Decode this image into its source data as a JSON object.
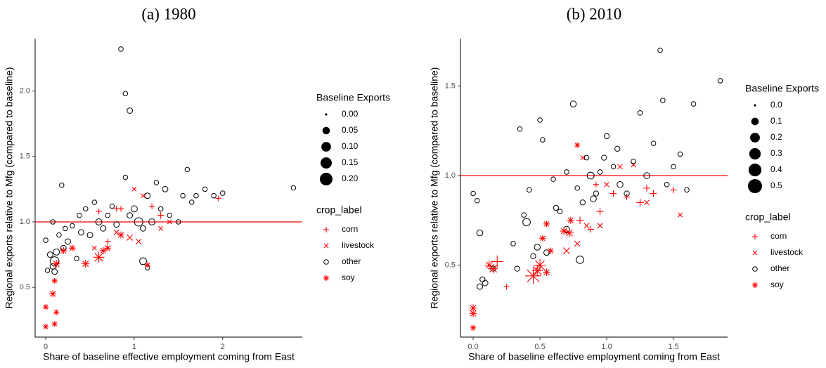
{
  "chart_data": [
    {
      "type": "scatter",
      "title": "(a) 1980",
      "x_label": "Share of baseline effective employment coming from East",
      "y_label": "Regional exports relative to Mfg (compared to baseline)",
      "xlim": [
        -0.12,
        2.9
      ],
      "ylim": [
        0.12,
        2.4
      ],
      "xticks": [
        0,
        1,
        2
      ],
      "yticks": [
        {
          "value": 0.5,
          "label": "0.5"
        },
        {
          "value": 1,
          "label": "1.0"
        },
        {
          "value": 1.5,
          "label": "1.5"
        },
        {
          "value": 2,
          "label": "2.0"
        }
      ],
      "hline": 1,
      "hline_color": "#ff0000",
      "size_legend": {
        "title": "Baseline Exports",
        "values": [
          {
            "value": 0,
            "label": "0.00"
          },
          {
            "value": 0.05,
            "label": "0.05"
          },
          {
            "value": 0.1,
            "label": "0.10"
          },
          {
            "value": 0.15,
            "label": "0.15"
          },
          {
            "value": 0.2,
            "label": "0.20"
          }
        ]
      },
      "color_legend_title": "crop_label",
      "series": [
        {
          "name": "corn",
          "color": "#ff0000",
          "marker": "plus",
          "x": [
            0.6,
            0.8,
            0.85,
            1.2,
            1.3,
            1.95,
            0.7
          ],
          "values": [
            1.08,
            1.1,
            1.1,
            1.12,
            1.05,
            1.18,
            0.85
          ],
          "sizes": [
            0.01,
            0.01,
            0.01,
            0.01,
            0.02,
            0.01,
            0.01
          ]
        },
        {
          "name": "livestock",
          "color": "#ff0000",
          "marker": "cross",
          "x": [
            1.0,
            0.95,
            1.05,
            1.3,
            1.4,
            0.55,
            0.8,
            1.1
          ],
          "values": [
            1.25,
            0.88,
            0.85,
            0.95,
            1.0,
            0.8,
            0.92,
            1.2
          ],
          "sizes": [
            0.01,
            0.03,
            0.02,
            0.01,
            0.01,
            0.01,
            0.02,
            0.01
          ]
        },
        {
          "name": "other",
          "color": "#000000",
          "marker": "circle",
          "x": [
            0,
            0.02,
            0.05,
            0.08,
            0.1,
            0.1,
            0.12,
            0.15,
            0.18,
            0.2,
            0.22,
            0.25,
            0.3,
            0.35,
            0.38,
            0.4,
            0.45,
            0.5,
            0.55,
            0.6,
            0.65,
            0.7,
            0.75,
            0.8,
            0.85,
            0.9,
            0.95,
            0.9,
            0.95,
            1.0,
            1.05,
            1.1,
            1.1,
            1.15,
            1.15,
            1.2,
            1.25,
            1.3,
            1.35,
            1.4,
            1.5,
            1.55,
            1.6,
            1.65,
            1.7,
            1.8,
            1.9,
            2.0,
            2.8,
            0.08
          ],
          "values": [
            0.86,
            0.63,
            0.75,
            1.0,
            0.7,
            0.62,
            0.77,
            0.9,
            1.28,
            0.8,
            0.95,
            0.85,
            0.97,
            0.72,
            1.05,
            0.92,
            1.1,
            0.9,
            1.15,
            1.0,
            0.95,
            1.05,
            1.12,
            0.98,
            2.32,
            1.98,
            1.85,
            1.34,
            1.05,
            1.1,
            1.0,
            0.95,
            0.7,
            0.65,
            1.2,
            1.0,
            1.3,
            1.1,
            1.25,
            1.05,
            1.0,
            1.2,
            1.4,
            1.15,
            1.2,
            1.25,
            1.2,
            1.22,
            1.26,
            0.66
          ],
          "sizes": [
            0.01,
            0.01,
            0.02,
            0.01,
            0.08,
            0.02,
            0.03,
            0.01,
            0.01,
            0.02,
            0.01,
            0.02,
            0.01,
            0.01,
            0.01,
            0.02,
            0.01,
            0.02,
            0.01,
            0.03,
            0.02,
            0.01,
            0.01,
            0.02,
            0.01,
            0.01,
            0.02,
            0.01,
            0.02,
            0.03,
            0.07,
            0.02,
            0.04,
            0.01,
            0.02,
            0.03,
            0.01,
            0.01,
            0.02,
            0.01,
            0.01,
            0.01,
            0.01,
            0.01,
            0.01,
            0.01,
            0.01,
            0.01,
            0.01,
            0.02
          ]
        },
        {
          "name": "soy",
          "color": "#ff0000",
          "marker": "asterisk",
          "x": [
            0.0,
            0.0,
            0.1,
            0.12,
            0.08,
            0.1,
            0.12,
            0.2,
            0.3,
            0.45,
            0.6,
            0.65,
            0.7,
            0.85,
            1.15
          ],
          "values": [
            0.35,
            0.2,
            0.22,
            0.31,
            0.45,
            0.55,
            0.68,
            0.78,
            0.8,
            0.68,
            0.73,
            0.78,
            0.8,
            0.9,
            0.67
          ],
          "sizes": [
            0.01,
            0.01,
            0.01,
            0.01,
            0.02,
            0.01,
            0.03,
            0.02,
            0.02,
            0.03,
            0.08,
            0.02,
            0.02,
            0.02,
            0.01
          ]
        }
      ]
    },
    {
      "type": "scatter",
      "title": "(b) 2010",
      "x_label": "Share of baseline effective employment coming from East",
      "y_label": "Regional exports relative to Mfg (compared to baseline)",
      "xlim": [
        -0.095,
        1.905
      ],
      "ylim": [
        0.098,
        1.765
      ],
      "xticks": [
        {
          "value": 0,
          "label": "0.0"
        },
        {
          "value": 0.5,
          "label": "0.5"
        },
        {
          "value": 1,
          "label": "1.0"
        },
        {
          "value": 1.5,
          "label": "1.5"
        }
      ],
      "yticks": [
        {
          "value": 0.5,
          "label": "0.5"
        },
        {
          "value": 1,
          "label": "1.0"
        },
        {
          "value": 1.5,
          "label": "1.5"
        }
      ],
      "hline": 1,
      "hline_color": "#ff0000",
      "size_legend": {
        "title": "Baseline Exports",
        "values": [
          {
            "value": 0,
            "label": "0.0"
          },
          {
            "value": 0.1,
            "label": "0.1"
          },
          {
            "value": 0.2,
            "label": "0.2"
          },
          {
            "value": 0.3,
            "label": "0.3"
          },
          {
            "value": 0.4,
            "label": "0.4"
          },
          {
            "value": 0.5,
            "label": "0.5"
          }
        ]
      },
      "color_legend_title": "crop_label",
      "series": [
        {
          "name": "corn",
          "color": "#ff0000",
          "marker": "plus",
          "x": [
            0.25,
            0.18,
            0.8,
            0.88,
            0.95,
            1.05,
            1.15,
            1.25,
            1.35,
            1.5,
            1.3,
            0.92
          ],
          "values": [
            0.38,
            0.52,
            0.75,
            0.7,
            0.8,
            0.9,
            0.88,
            0.85,
            0.9,
            0.92,
            0.93,
            0.95
          ],
          "sizes": [
            0.02,
            0.2,
            0.05,
            0.03,
            0.04,
            0.03,
            0.03,
            0.05,
            0.03,
            0.03,
            0.04,
            0.02
          ]
        },
        {
          "name": "livestock",
          "color": "#ff0000",
          "marker": "cross",
          "x": [
            0.7,
            0.78,
            0.85,
            1.0,
            1.2,
            1.3,
            1.55,
            0.82,
            1.1,
            0.95
          ],
          "values": [
            0.58,
            0.62,
            0.72,
            0.95,
            1.06,
            0.85,
            0.78,
            1.1,
            1.05,
            0.72
          ],
          "sizes": [
            0.08,
            0.05,
            0.04,
            0.03,
            0.03,
            0.03,
            0.02,
            0.02,
            0.03,
            0.04
          ]
        },
        {
          "name": "other",
          "color": "#000000",
          "marker": "circle",
          "x": [
            0.0,
            0.03,
            0.05,
            0.07,
            0.09,
            0.15,
            0.3,
            0.35,
            0.38,
            0.4,
            0.42,
            0.45,
            0.48,
            0.5,
            0.52,
            0.55,
            0.6,
            0.62,
            0.65,
            0.7,
            0.75,
            0.78,
            0.8,
            0.82,
            0.85,
            0.88,
            0.9,
            0.92,
            0.95,
            0.98,
            1.0,
            1.05,
            1.08,
            1.1,
            1.15,
            1.2,
            1.25,
            1.3,
            1.35,
            1.4,
            1.42,
            1.45,
            1.5,
            1.55,
            1.6,
            1.65,
            1.85,
            0.05,
            0.7,
            0.33
          ],
          "values": [
            0.9,
            0.86,
            0.68,
            0.42,
            0.4,
            0.48,
            0.62,
            1.26,
            0.78,
            0.74,
            0.92,
            0.55,
            0.6,
            1.31,
            1.2,
            0.57,
            0.98,
            0.82,
            0.8,
            0.7,
            1.4,
            0.93,
            0.53,
            0.85,
            1.1,
            1.0,
            0.87,
            0.9,
            1.02,
            1.1,
            1.22,
            1.05,
            1.15,
            0.95,
            0.9,
            1.08,
            1.35,
            1.0,
            1.18,
            1.7,
            1.42,
            0.95,
            1.05,
            1.12,
            0.92,
            1.4,
            1.53,
            0.38,
            1.02,
            0.48
          ],
          "sizes": [
            0.02,
            0.02,
            0.05,
            0.03,
            0.04,
            0.03,
            0.02,
            0.02,
            0.02,
            0.1,
            0.02,
            0.03,
            0.05,
            0.02,
            0.02,
            0.04,
            0.02,
            0.03,
            0.02,
            0.05,
            0.05,
            0.02,
            0.1,
            0.03,
            0.02,
            0.08,
            0.05,
            0.03,
            0.02,
            0.03,
            0.03,
            0.02,
            0.03,
            0.05,
            0.03,
            0.02,
            0.02,
            0.05,
            0.02,
            0.02,
            0.02,
            0.02,
            0.02,
            0.02,
            0.02,
            0.02,
            0.02,
            0.04,
            0.02,
            0.03
          ]
        },
        {
          "name": "soy",
          "color": "#ff0000",
          "marker": "asterisk",
          "x": [
            0.0,
            0.0,
            0.0,
            0.12,
            0.15,
            0.45,
            0.48,
            0.5,
            0.52,
            0.55,
            0.58,
            0.68,
            0.72,
            0.78,
            0.55,
            0.73
          ],
          "values": [
            0.26,
            0.23,
            0.15,
            0.5,
            0.48,
            0.44,
            0.47,
            0.5,
            0.65,
            0.46,
            0.58,
            0.69,
            0.68,
            1.17,
            0.73,
            0.75
          ],
          "sizes": [
            0.05,
            0.05,
            0.02,
            0.08,
            0.1,
            0.4,
            0.15,
            0.2,
            0.03,
            0.05,
            0.03,
            0.05,
            0.08,
            0.02,
            0.03,
            0.04
          ]
        }
      ]
    }
  ]
}
